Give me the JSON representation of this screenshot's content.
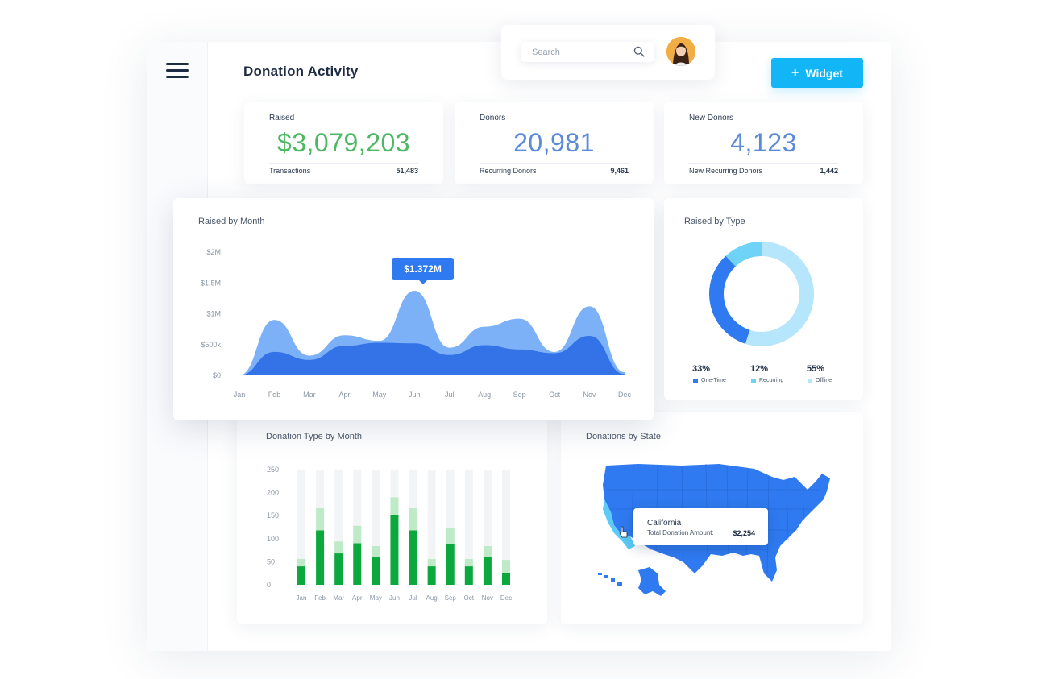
{
  "header": {
    "title": "Donation Activity",
    "search": {
      "placeholder": "Search",
      "value": ""
    },
    "widget_button": {
      "label": "Widget",
      "icon": "plus-icon"
    }
  },
  "stats": [
    {
      "label": "Raised",
      "value": "$3,079,203",
      "sub_label": "Transactions",
      "sub_value": "51,483",
      "color": "#4cb862"
    },
    {
      "label": "Donors",
      "value": "20,981",
      "sub_label": "Recurring Donors",
      "sub_value": "9,461",
      "color": "#5b8bd8"
    },
    {
      "label": "New Donors",
      "value": "4,123",
      "sub_label": "New Recurring Donors",
      "sub_value": "1,442",
      "color": "#5b8bd8"
    }
  ],
  "raised_by_month": {
    "title": "Raised by Month",
    "tooltip": "$1.372M",
    "chart_data": {
      "type": "area",
      "categories": [
        "Jan",
        "Feb",
        "Mar",
        "Apr",
        "May",
        "Jun",
        "Jul",
        "Aug",
        "Sep",
        "Oct",
        "Nov",
        "Dec"
      ],
      "y_tick_labels": [
        "$0",
        "$500k",
        "$1M",
        "$1.5M",
        "$2M"
      ],
      "ylim": [
        0,
        2000000
      ],
      "series": [
        {
          "values": [
            0,
            900000,
            320000,
            650000,
            560000,
            1372000,
            450000,
            790000,
            920000,
            380000,
            1120000,
            50000
          ],
          "color": "#6ea9f7"
        },
        {
          "values": [
            0,
            380000,
            250000,
            480000,
            530000,
            520000,
            330000,
            490000,
            420000,
            360000,
            640000,
            20000
          ],
          "color": "#2f6fe6"
        }
      ]
    }
  },
  "raised_by_type": {
    "title": "Raised by Type",
    "chart_data": {
      "type": "pie",
      "labels": [
        "One-Time",
        "Recurring",
        "Offline"
      ],
      "values": [
        33,
        12,
        55
      ],
      "colors": [
        "#2f7af0",
        "#6fd3f7",
        "#b5e6fb"
      ]
    },
    "legend": [
      {
        "pct": "33%",
        "label": "One-Time"
      },
      {
        "pct": "12%",
        "label": "Recurring"
      },
      {
        "pct": "55%",
        "label": "Offline"
      }
    ]
  },
  "donation_type_by_month": {
    "title": "Donation Type by Month",
    "chart_data": {
      "type": "bar",
      "categories": [
        "Jan",
        "Feb",
        "Mar",
        "Apr",
        "May",
        "Jun",
        "Jul",
        "Aug",
        "Sep",
        "Oct",
        "Nov",
        "Dec"
      ],
      "y_tick_labels": [
        "0",
        "50",
        "100",
        "150",
        "200",
        "250"
      ],
      "ylim": [
        0,
        250
      ],
      "series": [
        {
          "values": [
            40,
            118,
            68,
            90,
            60,
            152,
            118,
            40,
            88,
            40,
            60,
            26
          ],
          "color": "#0ba83e"
        },
        {
          "values": [
            16,
            48,
            26,
            38,
            24,
            38,
            48,
            16,
            36,
            16,
            24,
            28
          ],
          "color": "#bfeac8"
        }
      ],
      "background_bar_color": "#f2f4f6"
    }
  },
  "donations_by_state": {
    "title": "Donations by State",
    "tooltip": {
      "state": "California",
      "label": "Total Donation Amount:",
      "value": "$2,254"
    },
    "map_color": "#2f7af0",
    "highlight_color": "#5ccbf7"
  }
}
